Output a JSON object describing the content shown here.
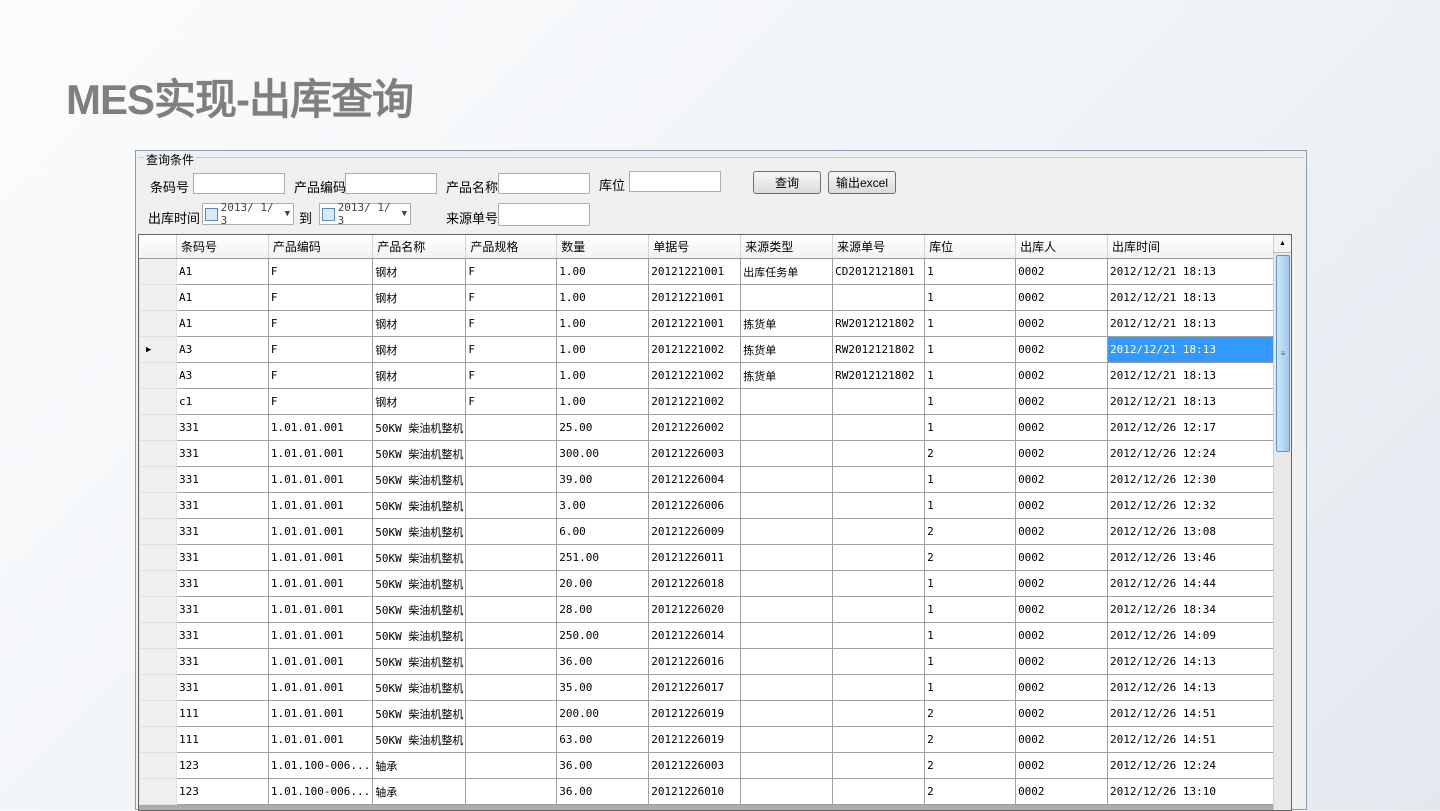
{
  "title": "MES实现-出库查询",
  "form": {
    "group_label": "查询条件",
    "barcode_label": "条码号",
    "barcode_value": "",
    "product_code_label": "产品编码",
    "product_code_value": "",
    "product_name_label": "产品名称",
    "product_name_value": "",
    "location_label": "库位",
    "location_value": "",
    "time_label": "出库时间",
    "date_from": "2013/ 1/ 3",
    "to_label": "到",
    "date_to": "2013/ 1/ 3",
    "source_no_label": "来源单号",
    "source_no_value": "",
    "query_button": "查询",
    "export_button": "输出excel"
  },
  "table": {
    "columns": [
      "条码号",
      "产品编码",
      "产品名称",
      "产品规格",
      "数量",
      "单据号",
      "来源类型",
      "来源单号",
      "库位",
      "出库人",
      "出库时间"
    ],
    "current_row_index": 3,
    "rows": [
      [
        "A1",
        "F",
        "钢材",
        "F",
        "1.00",
        "20121221001",
        "出库任务单",
        "CD2012121801",
        "1",
        "0002",
        "2012/12/21 18:13"
      ],
      [
        "A1",
        "F",
        "钢材",
        "F",
        "1.00",
        "20121221001",
        "",
        "",
        "1",
        "0002",
        "2012/12/21 18:13"
      ],
      [
        "A1",
        "F",
        "钢材",
        "F",
        "1.00",
        "20121221001",
        "拣货单",
        "RW2012121802",
        "1",
        "0002",
        "2012/12/21 18:13"
      ],
      [
        "A3",
        "F",
        "钢材",
        "F",
        "1.00",
        "20121221002",
        "拣货单",
        "RW2012121802",
        "1",
        "0002",
        "2012/12/21 18:13"
      ],
      [
        "A3",
        "F",
        "钢材",
        "F",
        "1.00",
        "20121221002",
        "拣货单",
        "RW2012121802",
        "1",
        "0002",
        "2012/12/21 18:13"
      ],
      [
        "c1",
        "F",
        "钢材",
        "F",
        "1.00",
        "20121221002",
        "",
        "",
        "1",
        "0002",
        "2012/12/21 18:13"
      ],
      [
        "331",
        "1.01.01.001",
        "50KW 柴油机整机",
        "",
        "25.00",
        "20121226002",
        "",
        "",
        "1",
        "0002",
        "2012/12/26 12:17"
      ],
      [
        "331",
        "1.01.01.001",
        "50KW 柴油机整机",
        "",
        "300.00",
        "20121226003",
        "",
        "",
        "2",
        "0002",
        "2012/12/26 12:24"
      ],
      [
        "331",
        "1.01.01.001",
        "50KW 柴油机整机",
        "",
        "39.00",
        "20121226004",
        "",
        "",
        "1",
        "0002",
        "2012/12/26 12:30"
      ],
      [
        "331",
        "1.01.01.001",
        "50KW 柴油机整机",
        "",
        "3.00",
        "20121226006",
        "",
        "",
        "1",
        "0002",
        "2012/12/26 12:32"
      ],
      [
        "331",
        "1.01.01.001",
        "50KW 柴油机整机",
        "",
        "6.00",
        "20121226009",
        "",
        "",
        "2",
        "0002",
        "2012/12/26 13:08"
      ],
      [
        "331",
        "1.01.01.001",
        "50KW 柴油机整机",
        "",
        "251.00",
        "20121226011",
        "",
        "",
        "2",
        "0002",
        "2012/12/26 13:46"
      ],
      [
        "331",
        "1.01.01.001",
        "50KW 柴油机整机",
        "",
        "20.00",
        "20121226018",
        "",
        "",
        "1",
        "0002",
        "2012/12/26 14:44"
      ],
      [
        "331",
        "1.01.01.001",
        "50KW 柴油机整机",
        "",
        "28.00",
        "20121226020",
        "",
        "",
        "1",
        "0002",
        "2012/12/26 18:34"
      ],
      [
        "331",
        "1.01.01.001",
        "50KW 柴油机整机",
        "",
        "250.00",
        "20121226014",
        "",
        "",
        "1",
        "0002",
        "2012/12/26 14:09"
      ],
      [
        "331",
        "1.01.01.001",
        "50KW 柴油机整机",
        "",
        "36.00",
        "20121226016",
        "",
        "",
        "1",
        "0002",
        "2012/12/26 14:13"
      ],
      [
        "331",
        "1.01.01.001",
        "50KW 柴油机整机",
        "",
        "35.00",
        "20121226017",
        "",
        "",
        "1",
        "0002",
        "2012/12/26 14:13"
      ],
      [
        "111",
        "1.01.01.001",
        "50KW 柴油机整机",
        "",
        "200.00",
        "20121226019",
        "",
        "",
        "2",
        "0002",
        "2012/12/26 14:51"
      ],
      [
        "111",
        "1.01.01.001",
        "50KW 柴油机整机",
        "",
        "63.00",
        "20121226019",
        "",
        "",
        "2",
        "0002",
        "2012/12/26 14:51"
      ],
      [
        "123",
        "1.01.100-006...",
        "轴承",
        "",
        "36.00",
        "20121226003",
        "",
        "",
        "2",
        "0002",
        "2012/12/26 12:24"
      ],
      [
        "123",
        "1.01.100-006...",
        "轴承",
        "",
        "36.00",
        "20121226010",
        "",
        "",
        "2",
        "0002",
        "2012/12/26 13:10"
      ]
    ]
  },
  "colors": {
    "selection": "#3399ff",
    "title": "#7f7f7f"
  }
}
